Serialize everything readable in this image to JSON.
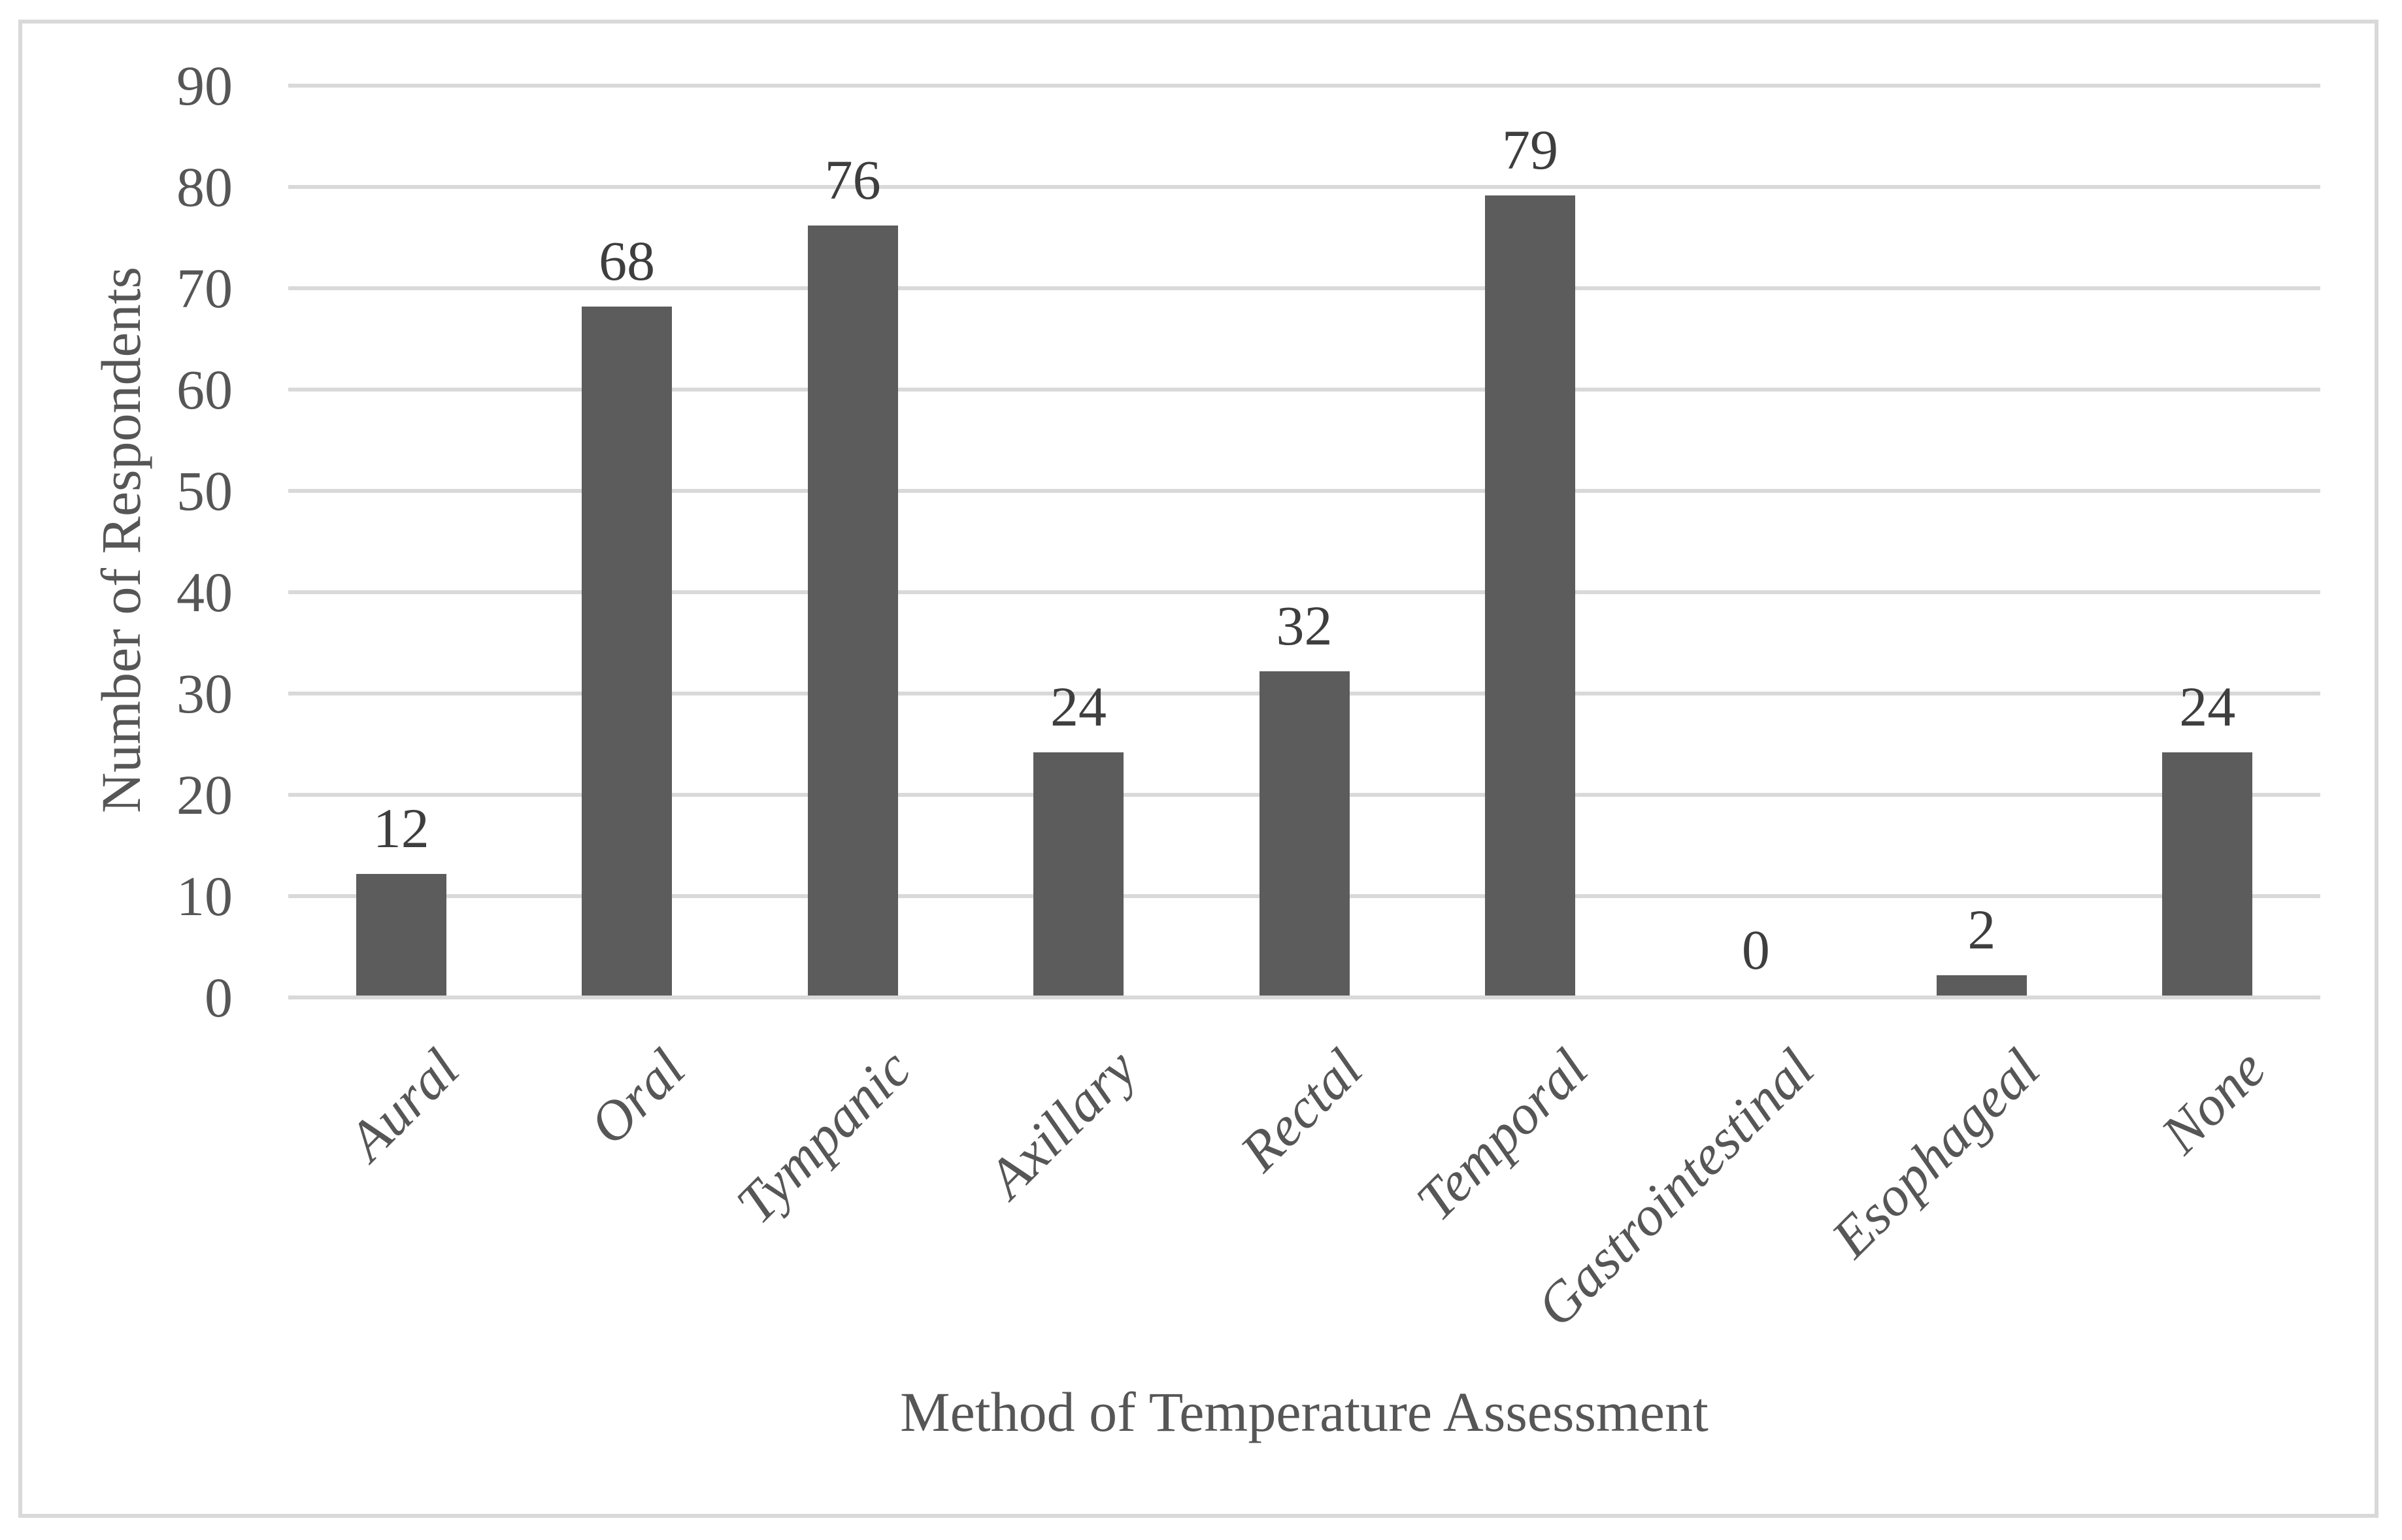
{
  "figure": {
    "background_color": "#ffffff",
    "border_color": "#d9d9d9",
    "gridline_color": "#d9d9d9",
    "bar_color": "#5c5c5c",
    "text_color": "#565656",
    "data_label_color": "#3e3e3e"
  },
  "chart_data": {
    "type": "bar",
    "title": "",
    "categories": [
      "Aural",
      "Oral",
      "Tympanic",
      "Axillary",
      "Rectal",
      "Temporal",
      "Gastrointestinal",
      "Esophageal",
      "None"
    ],
    "values": [
      12,
      68,
      76,
      24,
      32,
      79,
      0,
      2,
      24
    ],
    "data_labels": [
      "12",
      "68",
      "76",
      "24",
      "32",
      "79",
      "0",
      "2",
      "24"
    ],
    "xlabel": "Method of Temperature Assessment",
    "ylabel": "Number of Respondents",
    "ylim": [
      0,
      90
    ],
    "yticks": [
      0,
      10,
      20,
      30,
      40,
      50,
      60,
      70,
      80,
      90
    ],
    "grid": true,
    "gridline_orientation": "horizontal",
    "legend_position": "none",
    "bar_gap_style": "wide",
    "category_label_rotation_deg": 45,
    "category_label_style": "italic"
  }
}
